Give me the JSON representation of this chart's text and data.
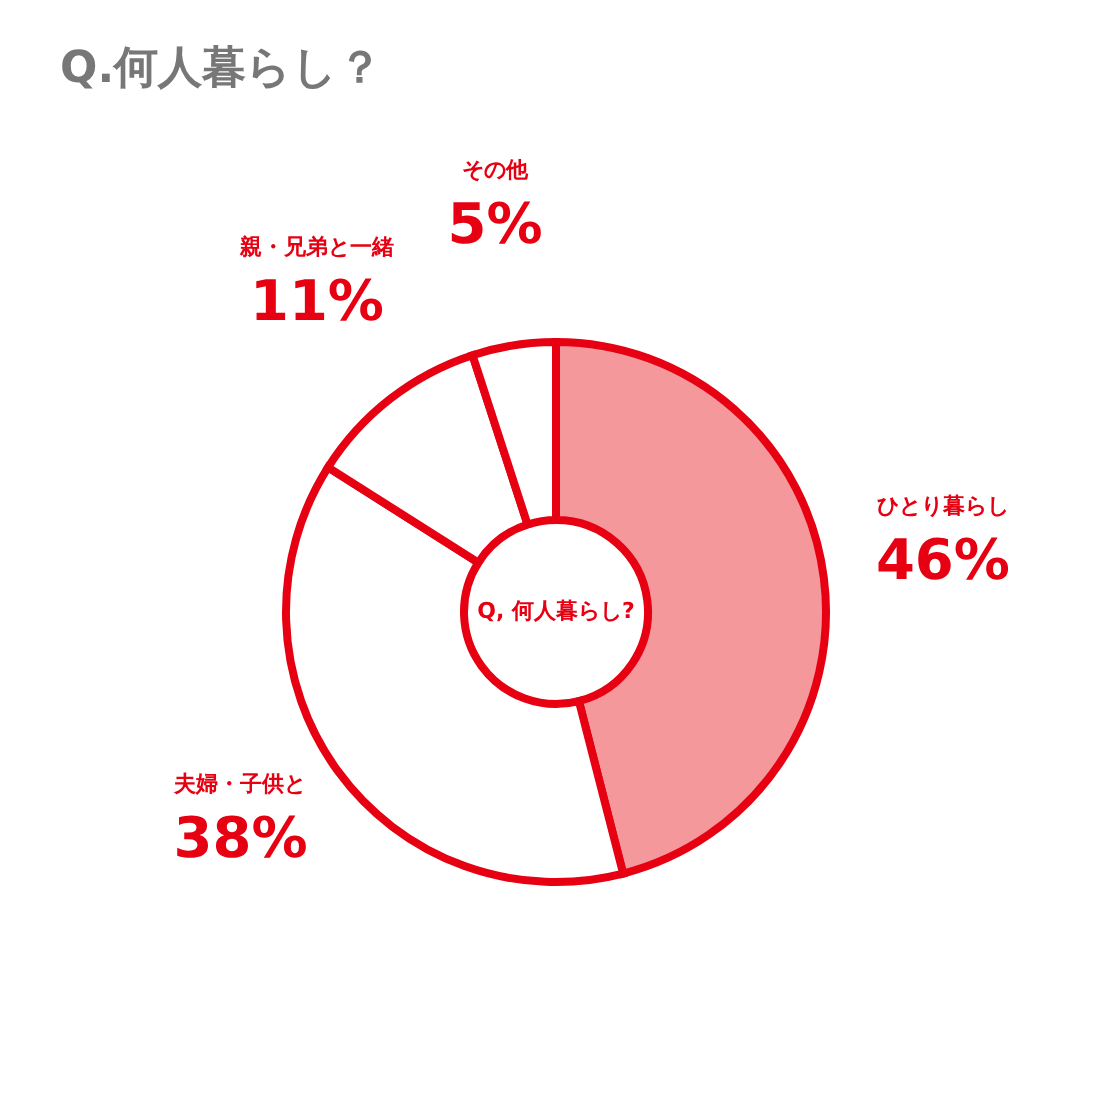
{
  "chart_data": {
    "type": "donut",
    "title": "Q.何人暮らし？",
    "categories": [
      "ひとり暮らし",
      "夫婦・子供と",
      "親・兄弟と一緒",
      "その他"
    ],
    "values": [
      46,
      38,
      11,
      5
    ],
    "colors": [
      "#f4989c",
      "#ffffff",
      "#ffffff",
      "#ffffff"
    ],
    "value_labels": [
      "46%",
      "38%",
      "11%",
      "5%"
    ],
    "annotations": [
      "Q, 何人暮らし?"
    ],
    "legend": false
  }
}
